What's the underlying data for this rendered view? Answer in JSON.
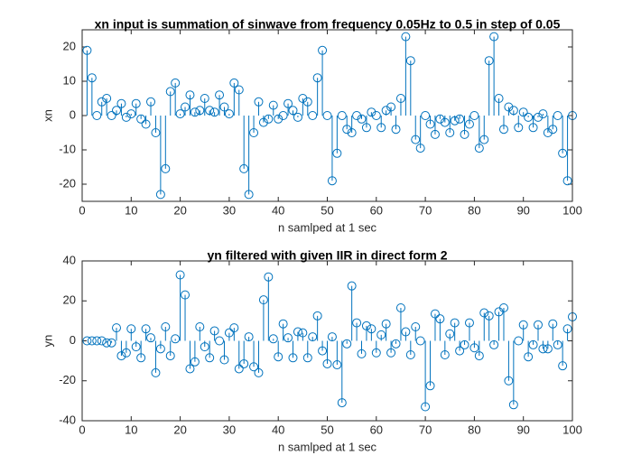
{
  "chart_data": [
    {
      "type": "stem",
      "title": "xn input is summation of sinwave from frequency 0.05Hz to 0.5 in step of 0.05",
      "xlabel": "n samlped at 1 sec",
      "ylabel": "xn",
      "color": "#0072bd",
      "x": [
        1,
        2,
        3,
        4,
        5,
        6,
        7,
        8,
        9,
        10,
        11,
        12,
        13,
        14,
        15,
        16,
        17,
        18,
        19,
        20,
        21,
        22,
        23,
        24,
        25,
        26,
        27,
        28,
        29,
        30,
        31,
        32,
        33,
        34,
        35,
        36,
        37,
        38,
        39,
        40,
        41,
        42,
        43,
        44,
        45,
        46,
        47,
        48,
        49,
        50,
        51,
        52,
        53,
        54,
        55,
        56,
        57,
        58,
        59,
        60,
        61,
        62,
        63,
        64,
        65,
        66,
        67,
        68,
        69,
        70,
        71,
        72,
        73,
        74,
        75,
        76,
        77,
        78,
        79,
        80,
        81,
        82,
        83,
        84,
        85,
        86,
        87,
        88,
        89,
        90,
        91,
        92,
        93,
        94,
        95,
        96,
        97,
        98,
        99,
        100
      ],
      "values": [
        19,
        11,
        0,
        4,
        5,
        0,
        1.5,
        3.5,
        -0.5,
        0.5,
        3.5,
        -1,
        -2.5,
        4,
        -5,
        -23,
        -15.5,
        7,
        9.5,
        0.5,
        2.5,
        6,
        1,
        1.5,
        5,
        1.5,
        1,
        6,
        2.5,
        0.5,
        9.5,
        7.5,
        -15.5,
        -23,
        -5,
        4,
        -2,
        -1,
        3,
        -1,
        0,
        3.5,
        1.5,
        -0.5,
        5,
        4,
        0,
        11,
        19,
        0,
        -19,
        -11,
        0,
        -4,
        -5,
        0,
        -1,
        -3.5,
        1,
        0,
        -3.5,
        1.5,
        2.5,
        -4,
        5,
        23,
        16,
        -7,
        -9.5,
        0,
        -2.5,
        -5.5,
        -1,
        -2,
        -5,
        -1.5,
        -1,
        -5.5,
        -2.5,
        0,
        -9.5,
        -7,
        16,
        23,
        5,
        -4,
        2.5,
        1.5,
        -3.5,
        1,
        -0.5,
        -3.5,
        -0.5,
        0.5,
        -5,
        -4,
        0,
        -11,
        -19,
        0
      ],
      "xlim": [
        0,
        100
      ],
      "xticks": [
        0,
        10,
        20,
        30,
        40,
        50,
        60,
        70,
        80,
        90,
        100
      ],
      "ylim": [
        -25,
        25
      ],
      "yticks": [
        -20,
        -10,
        0,
        10,
        20
      ]
    },
    {
      "type": "stem",
      "title": "yn filtered with given IIR in direct form 2",
      "xlabel": "n samlped at 1 sec",
      "ylabel": "yn",
      "color": "#0072bd",
      "x": [
        1,
        2,
        3,
        4,
        5,
        6,
        7,
        8,
        9,
        10,
        11,
        12,
        13,
        14,
        15,
        16,
        17,
        18,
        19,
        20,
        21,
        22,
        23,
        24,
        25,
        26,
        27,
        28,
        29,
        30,
        31,
        32,
        33,
        34,
        35,
        36,
        37,
        38,
        39,
        40,
        41,
        42,
        43,
        44,
        45,
        46,
        47,
        48,
        49,
        50,
        51,
        52,
        53,
        54,
        55,
        56,
        57,
        58,
        59,
        60,
        61,
        62,
        63,
        64,
        65,
        66,
        67,
        68,
        69,
        70,
        71,
        72,
        73,
        74,
        75,
        76,
        77,
        78,
        79,
        80,
        81,
        82,
        83,
        84,
        85,
        86,
        87,
        88,
        89,
        90,
        91,
        92,
        93,
        94,
        95,
        96,
        97,
        98,
        99,
        100
      ],
      "values": [
        0,
        0,
        0,
        0,
        -1,
        -1,
        6.5,
        -7.5,
        -6,
        6,
        -3,
        -8.5,
        6,
        1.5,
        -16,
        -4,
        7,
        -7.5,
        1,
        33,
        23,
        -14,
        -10.5,
        7,
        -3,
        -8.5,
        5,
        0,
        -9.5,
        4,
        6.5,
        -14,
        -11.5,
        2,
        -13,
        -16,
        20.5,
        32,
        1,
        -8,
        8.5,
        1.5,
        -8.5,
        4.5,
        4,
        -8.5,
        2,
        12.5,
        -5,
        -11.5,
        2,
        -12,
        -31,
        -1.5,
        27.5,
        9,
        -6.5,
        7.5,
        6,
        -6,
        3,
        8.5,
        -6,
        -1.5,
        16.5,
        4.5,
        -7,
        7,
        0,
        -33,
        -22.5,
        13.5,
        11,
        -7,
        3.5,
        9,
        -5,
        -2,
        9,
        -3.5,
        -7.5,
        14,
        12.5,
        -2,
        14.5,
        16.5,
        -20,
        -32,
        0,
        8,
        -8,
        -2,
        8,
        -4,
        -4,
        8.5,
        -2,
        -12.5,
        6,
        12
      ],
      "xlim": [
        0,
        100
      ],
      "xticks": [
        0,
        10,
        20,
        30,
        40,
        50,
        60,
        70,
        80,
        90,
        100
      ],
      "ylim": [
        -40,
        40
      ],
      "yticks": [
        -40,
        -20,
        0,
        20,
        40
      ]
    }
  ]
}
